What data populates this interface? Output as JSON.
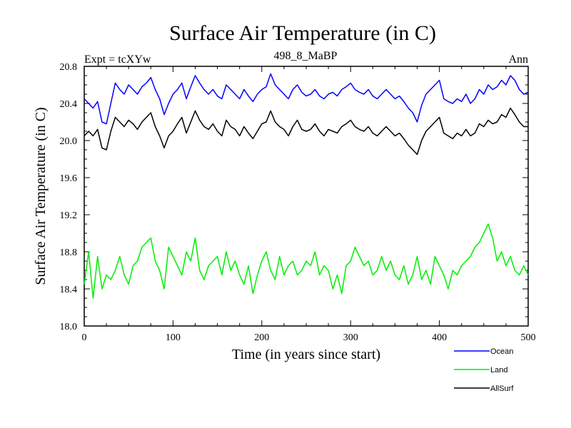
{
  "chart_data": {
    "type": "line",
    "title": "Surface Air Temperature (in C)",
    "subtitle_left": "Expt = tcXYw",
    "subtitle_center": "498_8_MaBP",
    "subtitle_right": "Ann",
    "xlabel": "Time (in years since start)",
    "ylabel": "Surface Air Temperature (in C)",
    "xlim": [
      0,
      500
    ],
    "ylim": [
      18.0,
      20.8
    ],
    "x_ticks": [
      0,
      100,
      200,
      300,
      400,
      500
    ],
    "y_ticks": [
      "18.0",
      "18.4",
      "18.8",
      "19.2",
      "19.6",
      "20.0",
      "20.4",
      "20.8"
    ],
    "legend_position": "bottom-right, outside plot",
    "series": [
      {
        "name": "Ocean",
        "color": "#0000ff",
        "x": [
          0,
          5,
          10,
          15,
          20,
          25,
          30,
          35,
          40,
          45,
          50,
          55,
          60,
          65,
          70,
          75,
          80,
          85,
          90,
          95,
          100,
          105,
          110,
          115,
          120,
          125,
          130,
          135,
          140,
          145,
          150,
          155,
          160,
          165,
          170,
          175,
          180,
          185,
          190,
          195,
          200,
          205,
          210,
          215,
          220,
          225,
          230,
          235,
          240,
          245,
          250,
          255,
          260,
          265,
          270,
          275,
          280,
          285,
          290,
          295,
          300,
          305,
          310,
          315,
          320,
          325,
          330,
          335,
          340,
          345,
          350,
          355,
          360,
          365,
          370,
          375,
          380,
          385,
          390,
          395,
          400,
          405,
          410,
          415,
          420,
          425,
          430,
          435,
          440,
          445,
          450,
          455,
          460,
          465,
          470,
          475,
          480,
          485,
          490,
          495,
          500
        ],
        "values": [
          20.45,
          20.4,
          20.35,
          20.42,
          20.2,
          20.18,
          20.4,
          20.62,
          20.55,
          20.5,
          20.6,
          20.55,
          20.5,
          20.58,
          20.62,
          20.68,
          20.55,
          20.45,
          20.28,
          20.4,
          20.5,
          20.55,
          20.62,
          20.45,
          20.58,
          20.7,
          20.62,
          20.55,
          20.5,
          20.55,
          20.48,
          20.45,
          20.6,
          20.55,
          20.5,
          20.45,
          20.55,
          20.48,
          20.42,
          20.5,
          20.55,
          20.58,
          20.72,
          20.6,
          20.55,
          20.5,
          20.45,
          20.55,
          20.6,
          20.52,
          20.48,
          20.5,
          20.55,
          20.48,
          20.45,
          20.5,
          20.52,
          20.48,
          20.55,
          20.58,
          20.62,
          20.55,
          20.52,
          20.5,
          20.55,
          20.48,
          20.45,
          20.5,
          20.55,
          20.5,
          20.45,
          20.48,
          20.42,
          20.35,
          20.3,
          20.2,
          20.38,
          20.5,
          20.55,
          20.6,
          20.65,
          20.45,
          20.42,
          20.4,
          20.45,
          20.42,
          20.5,
          20.4,
          20.45,
          20.55,
          20.5,
          20.6,
          20.55,
          20.58,
          20.65,
          20.6,
          20.7,
          20.65,
          20.55,
          20.5,
          20.52
        ]
      },
      {
        "name": "Land",
        "color": "#00ee00",
        "x": [
          0,
          5,
          10,
          15,
          20,
          25,
          30,
          35,
          40,
          45,
          50,
          55,
          60,
          65,
          70,
          75,
          80,
          85,
          90,
          95,
          100,
          105,
          110,
          115,
          120,
          125,
          130,
          135,
          140,
          145,
          150,
          155,
          160,
          165,
          170,
          175,
          180,
          185,
          190,
          195,
          200,
          205,
          210,
          215,
          220,
          225,
          230,
          235,
          240,
          245,
          250,
          255,
          260,
          265,
          270,
          275,
          280,
          285,
          290,
          295,
          300,
          305,
          310,
          315,
          320,
          325,
          330,
          335,
          340,
          345,
          350,
          355,
          360,
          365,
          370,
          375,
          380,
          385,
          390,
          395,
          400,
          405,
          410,
          415,
          420,
          425,
          430,
          435,
          440,
          445,
          450,
          455,
          460,
          465,
          470,
          475,
          480,
          485,
          490,
          495,
          500
        ],
        "values": [
          18.45,
          18.8,
          18.3,
          18.75,
          18.4,
          18.55,
          18.5,
          18.6,
          18.75,
          18.55,
          18.45,
          18.65,
          18.7,
          18.85,
          18.9,
          18.95,
          18.7,
          18.6,
          18.4,
          18.85,
          18.75,
          18.65,
          18.55,
          18.8,
          18.7,
          18.95,
          18.6,
          18.5,
          18.65,
          18.7,
          18.75,
          18.55,
          18.8,
          18.6,
          18.7,
          18.55,
          18.45,
          18.65,
          18.35,
          18.55,
          18.7,
          18.8,
          18.6,
          18.5,
          18.75,
          18.55,
          18.65,
          18.7,
          18.55,
          18.6,
          18.7,
          18.65,
          18.8,
          18.55,
          18.65,
          18.6,
          18.4,
          18.55,
          18.35,
          18.65,
          18.7,
          18.85,
          18.75,
          18.65,
          18.7,
          18.55,
          18.6,
          18.75,
          18.6,
          18.7,
          18.55,
          18.5,
          18.65,
          18.45,
          18.55,
          18.75,
          18.5,
          18.6,
          18.45,
          18.75,
          18.65,
          18.55,
          18.4,
          18.6,
          18.55,
          18.65,
          18.7,
          18.75,
          18.85,
          18.9,
          19.0,
          19.1,
          18.95,
          18.7,
          18.8,
          18.65,
          18.75,
          18.6,
          18.55,
          18.65,
          18.55
        ]
      },
      {
        "name": "AllSurf",
        "color": "#000000",
        "x": [
          0,
          5,
          10,
          15,
          20,
          25,
          30,
          35,
          40,
          45,
          50,
          55,
          60,
          65,
          70,
          75,
          80,
          85,
          90,
          95,
          100,
          105,
          110,
          115,
          120,
          125,
          130,
          135,
          140,
          145,
          150,
          155,
          160,
          165,
          170,
          175,
          180,
          185,
          190,
          195,
          200,
          205,
          210,
          215,
          220,
          225,
          230,
          235,
          240,
          245,
          250,
          255,
          260,
          265,
          270,
          275,
          280,
          285,
          290,
          295,
          300,
          305,
          310,
          315,
          320,
          325,
          330,
          335,
          340,
          345,
          350,
          355,
          360,
          365,
          370,
          375,
          380,
          385,
          390,
          395,
          400,
          405,
          410,
          415,
          420,
          425,
          430,
          435,
          440,
          445,
          450,
          455,
          460,
          465,
          470,
          475,
          480,
          485,
          490,
          495,
          500
        ],
        "values": [
          20.05,
          20.1,
          20.05,
          20.12,
          19.92,
          19.9,
          20.1,
          20.25,
          20.2,
          20.15,
          20.22,
          20.18,
          20.12,
          20.2,
          20.25,
          20.3,
          20.15,
          20.05,
          19.92,
          20.05,
          20.1,
          20.18,
          20.25,
          20.08,
          20.2,
          20.32,
          20.22,
          20.15,
          20.12,
          20.18,
          20.1,
          20.05,
          20.22,
          20.15,
          20.12,
          20.05,
          20.15,
          20.08,
          20.02,
          20.1,
          20.18,
          20.2,
          20.32,
          20.2,
          20.15,
          20.12,
          20.05,
          20.15,
          20.22,
          20.12,
          20.1,
          20.12,
          20.18,
          20.1,
          20.05,
          20.12,
          20.1,
          20.08,
          20.15,
          20.18,
          20.22,
          20.15,
          20.12,
          20.1,
          20.15,
          20.08,
          20.05,
          20.1,
          20.15,
          20.1,
          20.05,
          20.08,
          20.02,
          19.95,
          19.9,
          19.85,
          20.0,
          20.1,
          20.15,
          20.2,
          20.25,
          20.08,
          20.05,
          20.02,
          20.08,
          20.05,
          20.12,
          20.05,
          20.08,
          20.18,
          20.15,
          20.22,
          20.18,
          20.2,
          20.28,
          20.25,
          20.35,
          20.28,
          20.2,
          20.15,
          20.15
        ]
      }
    ]
  }
}
